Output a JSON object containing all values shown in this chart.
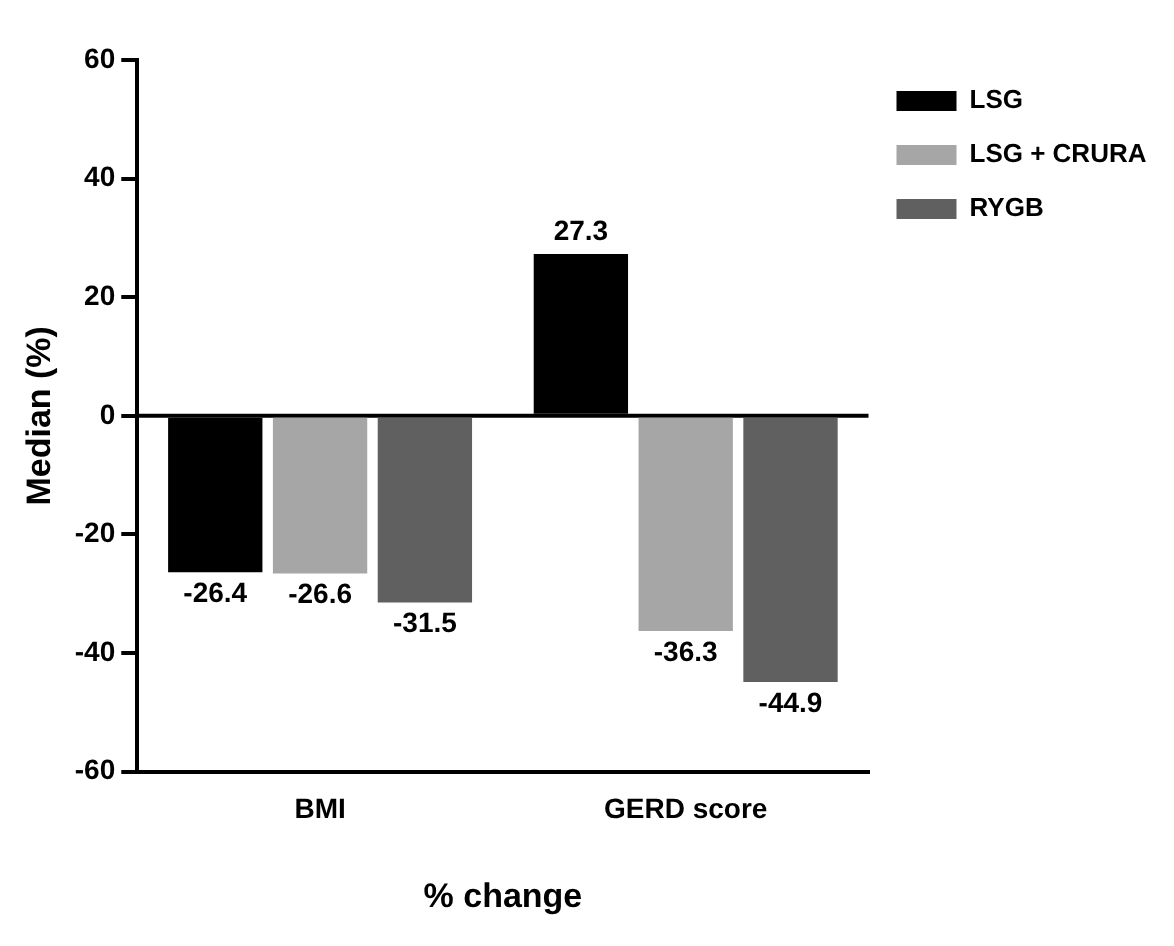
{
  "chart_data": {
    "type": "bar",
    "xlabel": "% change",
    "ylabel": "Median (%)",
    "categories": [
      "BMI",
      "GERD score"
    ],
    "series": [
      {
        "name": "LSG",
        "color": "#000000",
        "values": [
          -26.4,
          27.3
        ]
      },
      {
        "name": "LSG + CRURA",
        "color": "#a6a6a6",
        "values": [
          -26.6,
          -36.3
        ]
      },
      {
        "name": "RYGB",
        "color": "#606060",
        "values": [
          -31.5,
          -44.9
        ]
      }
    ],
    "ylim": [
      -60,
      60
    ],
    "yticks": [
      -60,
      -40,
      -20,
      0,
      20,
      40,
      60
    ],
    "grid": false,
    "legend": "top right",
    "data_labels": true,
    "ref_lines": [
      {
        "axis": "y",
        "value": 0
      }
    ]
  }
}
